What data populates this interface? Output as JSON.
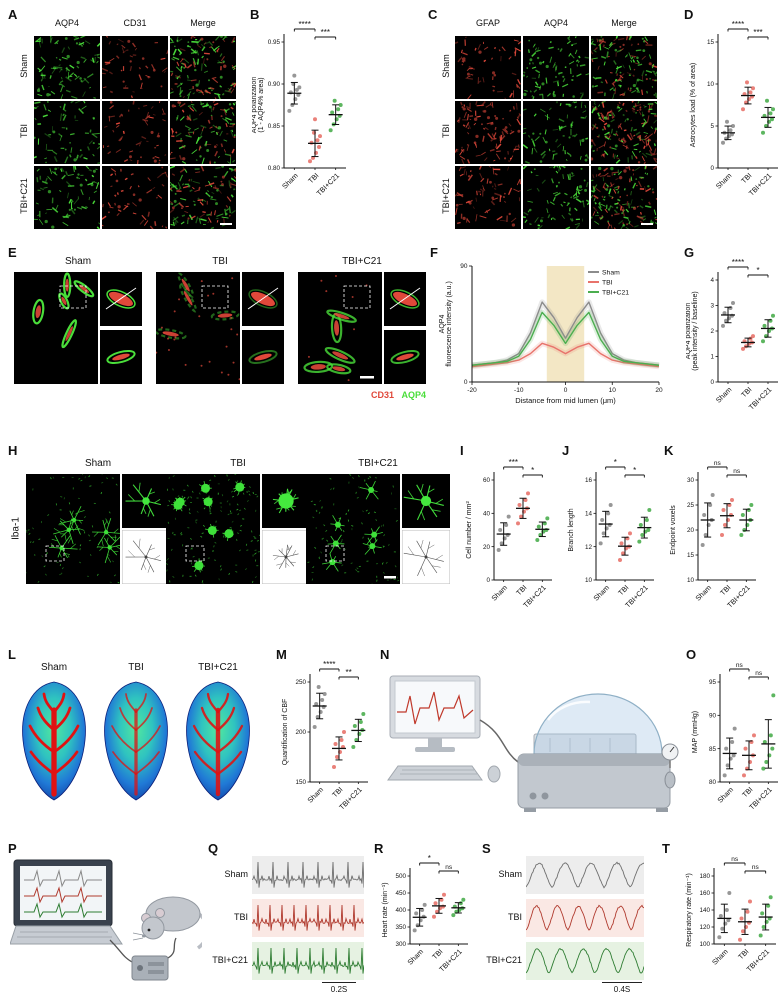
{
  "groups": [
    "Sham",
    "TBI",
    "TBI+C21"
  ],
  "group_colors": [
    "#8c8c8c",
    "#e8736b",
    "#4bae4f"
  ],
  "stains": {
    "AQP4": "#4ade3a",
    "CD31": "#e0483a",
    "GFAP": "#e0483a",
    "Iba-1": "#3fe03a"
  },
  "panels": {
    "A": {
      "label": "A",
      "cols": [
        "AQP4",
        "CD31",
        "Merge"
      ],
      "rows": [
        "Sham",
        "TBI",
        "TBI+C21"
      ],
      "density": [
        [
          75,
          40
        ],
        [
          55,
          45
        ],
        [
          65,
          42
        ]
      ]
    },
    "B": {
      "label": "B"
    },
    "C": {
      "label": "C",
      "cols": [
        "GFAP",
        "AQP4",
        "Merge"
      ],
      "rows": [
        "Sham",
        "TBI",
        "TBI+C21"
      ],
      "density": [
        [
          45,
          70
        ],
        [
          85,
          60
        ],
        [
          60,
          68
        ]
      ]
    },
    "D": {
      "label": "D"
    },
    "E": {
      "label": "E",
      "groups": [
        "Sham",
        "TBI",
        "TBI+C21"
      ],
      "legend": [
        {
          "text": "CD31",
          "color": "#e0483a"
        },
        {
          "text": "AQP4",
          "color": "#4ade3a"
        }
      ]
    },
    "F": {
      "label": "F"
    },
    "G": {
      "label": "G"
    },
    "H": {
      "label": "H",
      "stain": "Iba-1",
      "groups": [
        "Sham",
        "TBI",
        "TBI+C21"
      ]
    },
    "I": {
      "label": "I"
    },
    "J": {
      "label": "J"
    },
    "K": {
      "label": "K"
    },
    "L": {
      "label": "L",
      "groups": [
        "Sham",
        "TBI",
        "TBI+C21"
      ]
    },
    "M": {
      "label": "M"
    },
    "N": {
      "label": "N"
    },
    "O": {
      "label": "O"
    },
    "P": {
      "label": "P"
    },
    "Q": {
      "label": "Q",
      "scale": "0.2S"
    },
    "R": {
      "label": "R"
    },
    "S": {
      "label": "S",
      "scale": "0.4S"
    },
    "T": {
      "label": "T"
    }
  },
  "chart_data": [
    {
      "panel": "B",
      "type": "scatter",
      "ylabel": "AQP4 polarization\n(1 - AQP4% area)",
      "ylim": [
        0.8,
        0.95
      ],
      "yticks": [
        0.8,
        0.85,
        0.9,
        0.95
      ],
      "ydec": 2,
      "categories": [
        "Sham",
        "TBI",
        "TBI+C21"
      ],
      "series": [
        {
          "name": "Sham",
          "color": "#8c8c8c",
          "values": [
            0.868,
            0.875,
            0.882,
            0.887,
            0.89,
            0.893,
            0.896,
            0.9,
            0.91
          ]
        },
        {
          "name": "TBI",
          "color": "#e8736b",
          "values": [
            0.808,
            0.812,
            0.818,
            0.825,
            0.83,
            0.833,
            0.838,
            0.842,
            0.858
          ]
        },
        {
          "name": "TBI+C21",
          "color": "#4bae4f",
          "values": [
            0.845,
            0.852,
            0.858,
            0.862,
            0.866,
            0.87,
            0.875,
            0.88
          ]
        }
      ],
      "sig": [
        {
          "a": 0,
          "b": 1,
          "label": "****"
        },
        {
          "a": 1,
          "b": 2,
          "label": "***"
        }
      ]
    },
    {
      "panel": "D",
      "type": "scatter",
      "ylabel": "Astrocytes load (% of area)",
      "ylim": [
        0,
        15
      ],
      "yticks": [
        0,
        5,
        10,
        15
      ],
      "ydec": 0,
      "categories": [
        "Sham",
        "TBI",
        "TBI+C21"
      ],
      "series": [
        {
          "name": "Sham",
          "color": "#8c8c8c",
          "values": [
            3.0,
            3.5,
            3.8,
            4.0,
            4.2,
            4.5,
            5.0,
            5.5
          ]
        },
        {
          "name": "TBI",
          "color": "#e8736b",
          "values": [
            7.0,
            7.8,
            8.2,
            8.5,
            8.8,
            9.0,
            9.5,
            10.2
          ]
        },
        {
          "name": "TBI+C21",
          "color": "#4bae4f",
          "values": [
            4.2,
            5.0,
            5.5,
            5.8,
            6.2,
            6.5,
            7.0,
            8.0
          ]
        }
      ],
      "sig": [
        {
          "a": 0,
          "b": 1,
          "label": "****"
        },
        {
          "a": 1,
          "b": 2,
          "label": "***"
        }
      ]
    },
    {
      "panel": "F",
      "type": "line",
      "ylabel": "AQP4\nfluorescence intensity (a.u.)",
      "xlabel": "Distance from mid lumen (μm)",
      "xlim": [
        -20,
        20
      ],
      "xticks": [
        -20,
        -10,
        0,
        10,
        20
      ],
      "ylim": [
        0,
        90
      ],
      "yticks": [
        0,
        90
      ],
      "band": [
        -4,
        4
      ],
      "x": [
        -20,
        -17.5,
        -15,
        -12.5,
        -10,
        -7.5,
        -5,
        -2.5,
        0,
        2.5,
        5,
        7.5,
        10,
        12.5,
        15,
        17.5,
        20
      ],
      "series": [
        {
          "name": "Sham",
          "color": "#8c8c8c",
          "values": [
            13,
            14,
            15,
            17,
            22,
            38,
            62,
            50,
            34,
            50,
            62,
            38,
            22,
            17,
            15,
            14,
            13
          ]
        },
        {
          "name": "TBI",
          "color": "#e8736b",
          "values": [
            12,
            13,
            14,
            15,
            17,
            22,
            30,
            27,
            22,
            27,
            30,
            22,
            17,
            15,
            14,
            13,
            12
          ]
        },
        {
          "name": "TBI+C21",
          "color": "#4bae4f",
          "values": [
            13,
            14,
            15,
            16,
            20,
            33,
            54,
            44,
            30,
            44,
            54,
            33,
            20,
            16,
            15,
            14,
            13
          ]
        }
      ],
      "legend_position": "top-right"
    },
    {
      "panel": "G",
      "type": "scatter",
      "ylabel": "AQP4 polarization\n(peak intensity / baseline)",
      "ylim": [
        0,
        4
      ],
      "yticks": [
        0,
        1,
        2,
        3,
        4
      ],
      "ydec": 0,
      "categories": [
        "Sham",
        "TBI",
        "TBI+C21"
      ],
      "series": [
        {
          "name": "Sham",
          "color": "#8c8c8c",
          "values": [
            2.2,
            2.4,
            2.5,
            2.6,
            2.7,
            2.9,
            3.1
          ]
        },
        {
          "name": "TBI",
          "color": "#e8736b",
          "values": [
            1.3,
            1.4,
            1.5,
            1.55,
            1.6,
            1.7,
            1.8
          ]
        },
        {
          "name": "TBI+C21",
          "color": "#4bae4f",
          "values": [
            1.6,
            1.8,
            2.0,
            2.1,
            2.2,
            2.4,
            2.6
          ]
        }
      ],
      "sig": [
        {
          "a": 0,
          "b": 1,
          "label": "****"
        },
        {
          "a": 1,
          "b": 2,
          "label": "*"
        }
      ]
    },
    {
      "panel": "I",
      "type": "scatter",
      "ylabel": "Cell number / mm²",
      "ylim": [
        0,
        60
      ],
      "yticks": [
        0,
        20,
        40,
        60
      ],
      "ydec": 0,
      "categories": [
        "Sham",
        "TBI",
        "TBI+C21"
      ],
      "series": [
        {
          "name": "Sham",
          "color": "#8c8c8c",
          "values": [
            18,
            22,
            25,
            27,
            30,
            33,
            38
          ]
        },
        {
          "name": "TBI",
          "color": "#e8736b",
          "values": [
            34,
            38,
            41,
            43,
            45,
            48,
            52
          ]
        },
        {
          "name": "TBI+C21",
          "color": "#4bae4f",
          "values": [
            24,
            27,
            29,
            30,
            32,
            34,
            37
          ]
        }
      ],
      "sig": [
        {
          "a": 0,
          "b": 1,
          "label": "***"
        },
        {
          "a": 1,
          "b": 2,
          "label": "*"
        }
      ]
    },
    {
      "panel": "J",
      "type": "scatter",
      "ylabel": "Branch length",
      "ylim": [
        10,
        16
      ],
      "yticks": [
        10,
        12,
        14,
        16
      ],
      "ydec": 0,
      "categories": [
        "Sham",
        "TBI",
        "TBI+C21"
      ],
      "series": [
        {
          "name": "Sham",
          "color": "#8c8c8c",
          "values": [
            12.2,
            12.8,
            13.1,
            13.3,
            13.6,
            14.0,
            14.5
          ]
        },
        {
          "name": "TBI",
          "color": "#e8736b",
          "values": [
            11.2,
            11.6,
            11.9,
            12.0,
            12.2,
            12.5,
            12.8
          ]
        },
        {
          "name": "TBI+C21",
          "color": "#4bae4f",
          "values": [
            12.3,
            12.7,
            12.9,
            13.0,
            13.3,
            13.6,
            14.2
          ]
        }
      ],
      "sig": [
        {
          "a": 0,
          "b": 1,
          "label": "*"
        },
        {
          "a": 1,
          "b": 2,
          "label": "*"
        }
      ]
    },
    {
      "panel": "K",
      "type": "scatter",
      "ylabel": "Endpoint voxels",
      "ylim": [
        10,
        30
      ],
      "yticks": [
        10,
        15,
        20,
        25,
        30
      ],
      "ydec": 0,
      "categories": [
        "Sham",
        "TBI",
        "TBI+C21"
      ],
      "series": [
        {
          "name": "Sham",
          "color": "#8c8c8c",
          "values": [
            17,
            19,
            21,
            22,
            23,
            25,
            27
          ]
        },
        {
          "name": "TBI",
          "color": "#e8736b",
          "values": [
            19,
            21,
            22,
            23,
            24,
            25,
            26
          ]
        },
        {
          "name": "TBI+C21",
          "color": "#4bae4f",
          "values": [
            19,
            20,
            21,
            22,
            23,
            24,
            25
          ]
        }
      ],
      "sig": [
        {
          "a": 0,
          "b": 1,
          "label": "ns"
        },
        {
          "a": 1,
          "b": 2,
          "label": "ns"
        }
      ]
    },
    {
      "panel": "M",
      "type": "scatter",
      "ylabel": "Quantification of CBF",
      "ylim": [
        150,
        250
      ],
      "yticks": [
        150,
        200,
        250
      ],
      "ydec": 0,
      "categories": [
        "Sham",
        "TBI",
        "TBI+C21"
      ],
      "series": [
        {
          "name": "Sham",
          "color": "#8c8c8c",
          "values": [
            205,
            215,
            220,
            225,
            228,
            232,
            238,
            245
          ]
        },
        {
          "name": "TBI",
          "color": "#e8736b",
          "values": [
            165,
            175,
            180,
            185,
            188,
            192,
            200
          ]
        },
        {
          "name": "TBI+C21",
          "color": "#4bae4f",
          "values": [
            185,
            192,
            198,
            202,
            206,
            210,
            218
          ]
        }
      ],
      "sig": [
        {
          "a": 0,
          "b": 1,
          "label": "****"
        },
        {
          "a": 1,
          "b": 2,
          "label": "**"
        }
      ]
    },
    {
      "panel": "O",
      "type": "scatter",
      "ylabel": "MAP (mmHg)",
      "ylim": [
        80,
        95
      ],
      "yticks": [
        80,
        85,
        90,
        95
      ],
      "ydec": 0,
      "categories": [
        "Sham",
        "TBI",
        "TBI+C21"
      ],
      "series": [
        {
          "name": "Sham",
          "color": "#8c8c8c",
          "values": [
            81,
            82.5,
            83.5,
            84,
            85,
            86,
            88
          ]
        },
        {
          "name": "TBI",
          "color": "#e8736b",
          "values": [
            81,
            82,
            83,
            84,
            85,
            86,
            87
          ]
        },
        {
          "name": "TBI+C21",
          "color": "#4bae4f",
          "values": [
            82,
            83,
            84,
            85,
            86,
            87,
            93
          ]
        }
      ],
      "sig": [
        {
          "a": 0,
          "b": 1,
          "label": "ns"
        },
        {
          "a": 1,
          "b": 2,
          "label": "ns"
        }
      ]
    },
    {
      "panel": "R",
      "type": "scatter",
      "ylabel": "Heart rate (min⁻¹)",
      "ylim": [
        300,
        500
      ],
      "yticks": [
        300,
        350,
        400,
        450,
        500
      ],
      "ydec": 0,
      "categories": [
        "Sham",
        "TBI",
        "TBI+C21"
      ],
      "series": [
        {
          "name": "Sham",
          "color": "#8c8c8c",
          "values": [
            340,
            355,
            370,
            380,
            390,
            400,
            415
          ]
        },
        {
          "name": "TBI",
          "color": "#e8736b",
          "values": [
            380,
            395,
            405,
            410,
            420,
            430,
            445
          ]
        },
        {
          "name": "TBI+C21",
          "color": "#4bae4f",
          "values": [
            385,
            395,
            400,
            405,
            410,
            420,
            430
          ]
        }
      ],
      "sig": [
        {
          "a": 0,
          "b": 1,
          "label": "*"
        },
        {
          "a": 1,
          "b": 2,
          "label": "ns"
        }
      ]
    },
    {
      "panel": "T",
      "type": "scatter",
      "ylabel": "Respiratory rate (min⁻¹)",
      "ylim": [
        100,
        180
      ],
      "yticks": [
        100,
        120,
        140,
        160,
        180
      ],
      "ydec": 0,
      "categories": [
        "Sham",
        "TBI",
        "TBI+C21"
      ],
      "series": [
        {
          "name": "Sham",
          "color": "#8c8c8c",
          "values": [
            108,
            118,
            124,
            128,
            133,
            140,
            160
          ]
        },
        {
          "name": "TBI",
          "color": "#e8736b",
          "values": [
            105,
            115,
            120,
            125,
            130,
            138,
            150
          ]
        },
        {
          "name": "TBI+C21",
          "color": "#4bae4f",
          "values": [
            110,
            120,
            126,
            130,
            136,
            145,
            155
          ]
        }
      ],
      "sig": [
        {
          "a": 0,
          "b": 1,
          "label": "ns"
        },
        {
          "a": 1,
          "b": 2,
          "label": "ns"
        }
      ]
    }
  ],
  "traces": {
    "Q": {
      "kind": "ecg",
      "scale_label": "0.2S",
      "rows": [
        {
          "name": "Sham",
          "color": "#6f6f6f",
          "bg": "#ededed",
          "period": 15
        },
        {
          "name": "TBI",
          "color": "#b03a2e",
          "bg": "#fae8e4",
          "period": 12
        },
        {
          "name": "TBI+C21",
          "color": "#2f7d33",
          "bg": "#e6f2e2",
          "period": 13
        }
      ]
    },
    "S": {
      "kind": "resp",
      "scale_label": "0.4S",
      "rows": [
        {
          "name": "Sham",
          "color": "#6f6f6f",
          "bg": "#ededed",
          "period": 26
        },
        {
          "name": "TBI",
          "color": "#b03a2e",
          "bg": "#fae8e4",
          "period": 21
        },
        {
          "name": "TBI+C21",
          "color": "#2f7d33",
          "bg": "#e6f2e2",
          "period": 23
        }
      ]
    }
  }
}
